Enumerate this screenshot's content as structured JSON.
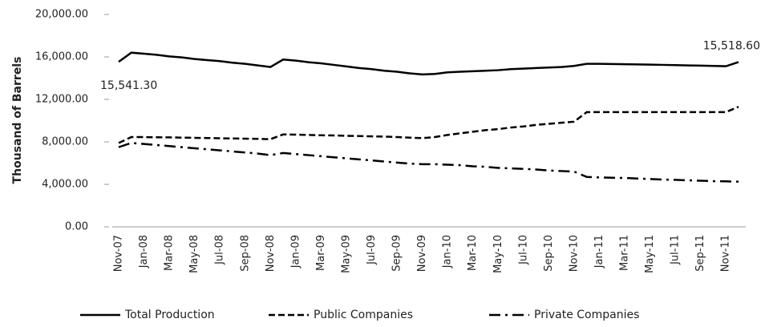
{
  "chart_data": {
    "type": "line",
    "y_label": "Thousand of Barrels",
    "categories": [
      "Nov-07",
      null,
      "Jan-08",
      null,
      "Mar-08",
      null,
      "May-08",
      null,
      "Jul-08",
      null,
      "Sep-08",
      null,
      "Nov-08",
      null,
      "Jan-09",
      null,
      "Mar-09",
      null,
      "May-09",
      null,
      "Jul-09",
      null,
      "Sep-09",
      null,
      "Nov-09",
      null,
      "Jan-10",
      null,
      "Mar-10",
      null,
      "May-10",
      null,
      "Jul-10",
      null,
      "Sep-10",
      null,
      "Nov-10",
      null,
      "Jan-11",
      null,
      "Mar-11",
      null,
      "May-11",
      null,
      "Jul-11",
      null,
      "Sep-11",
      null,
      "Nov-11",
      null
    ],
    "series": [
      {
        "name": "Total Production",
        "color": "#000000",
        "dash": "solid",
        "values": [
          15541.3,
          16400,
          16300,
          16200,
          16050,
          15950,
          15800,
          15700,
          15600,
          15450,
          15350,
          15200,
          15050,
          15750,
          15650,
          15500,
          15400,
          15250,
          15100,
          14950,
          14850,
          14700,
          14600,
          14450,
          14350,
          14400,
          14550,
          14600,
          14650,
          14700,
          14750,
          14850,
          14900,
          14950,
          15000,
          15050,
          15150,
          15350,
          15350,
          15330,
          15310,
          15290,
          15270,
          15250,
          15230,
          15200,
          15180,
          15150,
          15120,
          15518.6
        ],
        "value_labels": [
          "15,541.30",
          null,
          null,
          null,
          null,
          null,
          null,
          null,
          null,
          null,
          null,
          null,
          null,
          null,
          null,
          null,
          null,
          null,
          null,
          null,
          null,
          null,
          null,
          null,
          null,
          null,
          null,
          null,
          null,
          null,
          null,
          null,
          null,
          null,
          null,
          null,
          null,
          null,
          null,
          null,
          null,
          null,
          null,
          null,
          null,
          null,
          null,
          null,
          null,
          "15,518.60"
        ]
      },
      {
        "name": "Public Companies",
        "color": "#000000",
        "dash": "dashed",
        "values": [
          7900,
          8450,
          8450,
          8430,
          8420,
          8400,
          8380,
          8360,
          8340,
          8320,
          8300,
          8280,
          8250,
          8700,
          8680,
          8650,
          8620,
          8600,
          8570,
          8550,
          8520,
          8500,
          8450,
          8400,
          8350,
          8450,
          8650,
          8800,
          8950,
          9100,
          9200,
          9350,
          9450,
          9600,
          9700,
          9800,
          9900,
          10800,
          10800,
          10800,
          10800,
          10800,
          10800,
          10800,
          10800,
          10800,
          10800,
          10800,
          10800,
          11300
        ]
      },
      {
        "name": "Private Companies",
        "color": "#000000",
        "dash": "dashdot",
        "values": [
          7500,
          7900,
          7800,
          7700,
          7600,
          7500,
          7400,
          7300,
          7200,
          7100,
          7000,
          6900,
          6750,
          6950,
          6850,
          6750,
          6650,
          6550,
          6450,
          6350,
          6250,
          6150,
          6050,
          5950,
          5900,
          5900,
          5850,
          5800,
          5700,
          5650,
          5550,
          5500,
          5450,
          5400,
          5300,
          5250,
          5200,
          4700,
          4650,
          4620,
          4600,
          4550,
          4500,
          4450,
          4420,
          4380,
          4340,
          4300,
          4280,
          4250
        ]
      }
    ],
    "ylim": [
      0,
      20000
    ],
    "yticks": [
      {
        "value": 0,
        "label": "0.00"
      },
      {
        "value": 4000,
        "label": "4,000.00"
      },
      {
        "value": 8000,
        "label": "8,000.00"
      },
      {
        "value": 12000,
        "label": "12,000.00"
      },
      {
        "value": 16000,
        "label": "16,000.00"
      },
      {
        "value": 20000,
        "label": "20,000.00"
      }
    ],
    "grid": false,
    "legend": "bottom"
  }
}
